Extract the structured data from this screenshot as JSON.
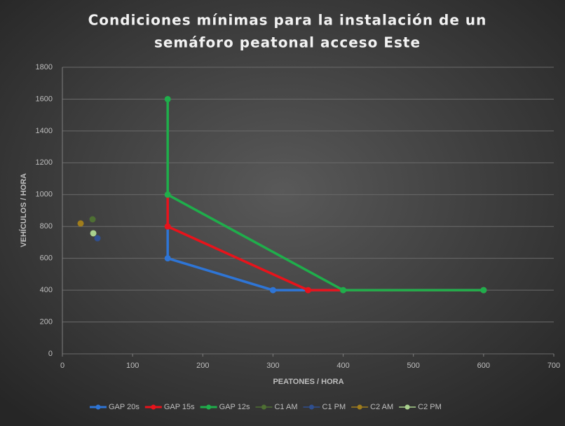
{
  "chart_data": {
    "type": "scatter",
    "title": [
      "Condiciones  mínimas para la instalación de un",
      "semáforo peatonal acceso Este"
    ],
    "xlabel": "PEATONES / HORA",
    "ylabel": "VEHÍCULOS / HORA",
    "xlim": [
      0,
      700
    ],
    "xticks": [
      0,
      100,
      200,
      300,
      400,
      500,
      600,
      700
    ],
    "ylim": [
      0,
      1800
    ],
    "yticks": [
      0,
      200,
      400,
      600,
      800,
      1000,
      1200,
      1400,
      1600,
      1800
    ],
    "grid": true,
    "legend": "bottom",
    "series": [
      {
        "name": "GAP 20s",
        "color": "#2e75d6",
        "mode": "lines+markers",
        "x": [
          150,
          150,
          300,
          600
        ],
        "values": [
          1000,
          600,
          400,
          400
        ]
      },
      {
        "name": "GAP 15s",
        "color": "#e8131b",
        "mode": "lines+markers",
        "x": [
          150,
          150,
          350,
          600
        ],
        "values": [
          1000,
          800,
          400,
          400
        ]
      },
      {
        "name": "GAP 12s",
        "color": "#1fae4b",
        "mode": "lines+markers",
        "x": [
          150,
          150,
          400,
          600
        ],
        "values": [
          1600,
          1000,
          400,
          400
        ]
      },
      {
        "name": "C1 AM",
        "color": "#4e6f33",
        "mode": "markers",
        "x": [
          43
        ],
        "values": [
          845
        ]
      },
      {
        "name": "C1 PM",
        "color": "#2f4f8f",
        "mode": "markers",
        "x": [
          50
        ],
        "values": [
          726
        ]
      },
      {
        "name": "C2 AM",
        "color": "#a07d1c",
        "mode": "markers",
        "x": [
          26
        ],
        "values": [
          819
        ]
      },
      {
        "name": "C2 PM",
        "color": "#a9d18e",
        "mode": "markers",
        "x": [
          44
        ],
        "values": [
          757
        ]
      }
    ]
  }
}
